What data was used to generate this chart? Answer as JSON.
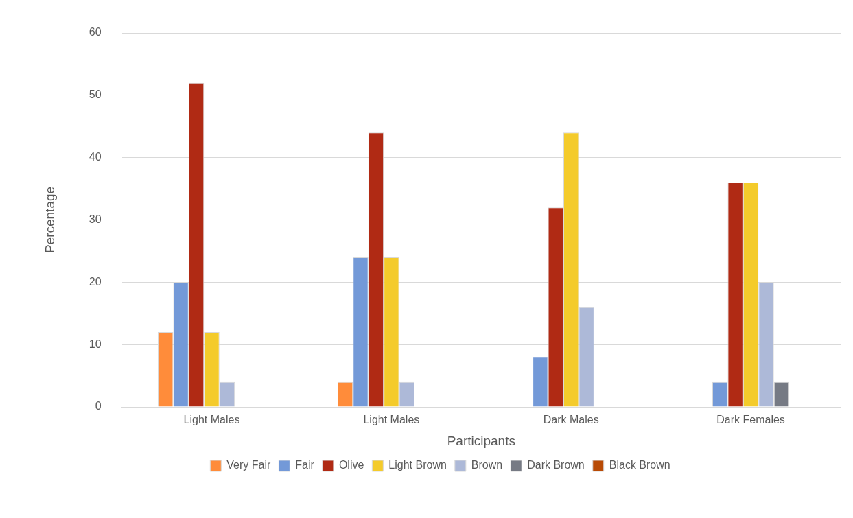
{
  "chart_data": {
    "type": "bar",
    "xlabel": "Participants",
    "ylabel": "Percentage",
    "categories": [
      "Light Males",
      "Light Males",
      "Dark Males",
      "Dark Females"
    ],
    "series": [
      {
        "name": "Very Fair",
        "color": "#ff8c3a",
        "values": [
          12,
          4,
          0,
          0
        ]
      },
      {
        "name": "Fair",
        "color": "#7399d8",
        "values": [
          20,
          24,
          8,
          4
        ]
      },
      {
        "name": "Olive",
        "color": "#b02a14",
        "values": [
          52,
          44,
          32,
          36
        ]
      },
      {
        "name": "Light Brown",
        "color": "#f4cb2b",
        "values": [
          12,
          24,
          44,
          36
        ]
      },
      {
        "name": "Brown",
        "color": "#adb9d8",
        "values": [
          4,
          4,
          16,
          20
        ]
      },
      {
        "name": "Dark Brown",
        "color": "#767a84",
        "values": [
          0,
          0,
          0,
          4
        ]
      },
      {
        "name": "Black Brown",
        "color": "#b84a05",
        "values": [
          0,
          0,
          0,
          0
        ]
      }
    ],
    "ylim": [
      0,
      60
    ],
    "yticks": [
      0,
      10,
      20,
      30,
      40,
      50,
      60
    ],
    "grid": "y",
    "legend": "bottom"
  }
}
